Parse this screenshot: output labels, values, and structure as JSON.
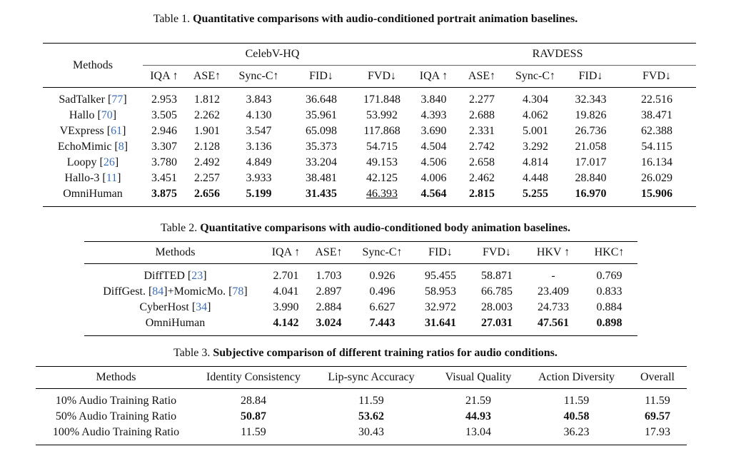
{
  "table1": {
    "caption_prefix": "Table 1.",
    "caption": "Quantitative comparisons with audio-conditioned portrait animation baselines.",
    "methods_header": "Methods",
    "groups": [
      "CelebV-HQ",
      "RAVDESS"
    ],
    "columns": [
      "IQA ↑",
      "ASE↑",
      "Sync-C↑",
      "FID↓",
      "FVD↓",
      "IQA ↑",
      "ASE↑",
      "Sync-C↑",
      "FID↓",
      "FVD↓"
    ],
    "rows": [
      {
        "method": [
          {
            "t": "SadTalker ["
          },
          {
            "t": "77",
            "ref": true
          },
          {
            "t": "]"
          }
        ],
        "values": [
          "2.953",
          "1.812",
          "3.843",
          "36.648",
          "171.848",
          "3.840",
          "2.277",
          "4.304",
          "32.343",
          "22.516"
        ]
      },
      {
        "method": [
          {
            "t": "Hallo ["
          },
          {
            "t": "70",
            "ref": true
          },
          {
            "t": "]"
          }
        ],
        "values": [
          "3.505",
          "2.262",
          "4.130",
          "35.961",
          "53.992",
          "4.393",
          "2.688",
          "4.062",
          "19.826",
          "38.471"
        ]
      },
      {
        "method": [
          {
            "t": "VExpress ["
          },
          {
            "t": "61",
            "ref": true
          },
          {
            "t": "]"
          }
        ],
        "values": [
          "2.946",
          "1.901",
          "3.547",
          "65.098",
          "117.868",
          "3.690",
          "2.331",
          "5.001",
          "26.736",
          "62.388"
        ]
      },
      {
        "method": [
          {
            "t": "EchoMimic ["
          },
          {
            "t": "8",
            "ref": true
          },
          {
            "t": "]"
          }
        ],
        "values": [
          "3.307",
          "2.128",
          "3.136",
          "35.373",
          "54.715",
          "4.504",
          "2.742",
          "3.292",
          "21.058",
          "54.115"
        ]
      },
      {
        "method": [
          {
            "t": "Loopy ["
          },
          {
            "t": "26",
            "ref": true
          },
          {
            "t": "]"
          }
        ],
        "values": [
          "3.780",
          "2.492",
          "4.849",
          "33.204",
          "49.153",
          "4.506",
          "2.658",
          "4.814",
          "17.017",
          "16.134"
        ]
      },
      {
        "method": [
          {
            "t": "Hallo-3 ["
          },
          {
            "t": "11",
            "ref": true
          },
          {
            "t": "]"
          }
        ],
        "values": [
          "3.451",
          "2.257",
          "3.933",
          "38.481",
          "42.125",
          "4.006",
          "2.462",
          "4.448",
          "28.840",
          "26.029"
        ]
      },
      {
        "method": [
          {
            "t": "OmniHuman"
          }
        ],
        "values": [
          "3.875",
          "2.656",
          "5.199",
          "31.435",
          "46.393",
          "4.564",
          "2.815",
          "5.255",
          "16.970",
          "15.906"
        ],
        "bold": [
          0,
          1,
          2,
          3,
          5,
          6,
          7,
          8,
          9
        ],
        "underline": [
          4
        ]
      }
    ]
  },
  "table2": {
    "caption_prefix": "Table 2.",
    "caption": "Quantitative comparisons with audio-conditioned body animation baselines.",
    "methods_header": "Methods",
    "columns": [
      "IQA ↑",
      "ASE↑",
      "Sync-C↑",
      "FID↓",
      "FVD↓",
      "HKV ↑",
      "HKC↑"
    ],
    "rows": [
      {
        "method": [
          {
            "t": "DiffTED ["
          },
          {
            "t": "23",
            "ref": true
          },
          {
            "t": "]"
          }
        ],
        "values": [
          "2.701",
          "1.703",
          "0.926",
          "95.455",
          "58.871",
          "-",
          "0.769"
        ]
      },
      {
        "method": [
          {
            "t": "DiffGest. ["
          },
          {
            "t": "84",
            "ref": true
          },
          {
            "t": "]+MomicMo. ["
          },
          {
            "t": "78",
            "ref": true
          },
          {
            "t": "]"
          }
        ],
        "values": [
          "4.041",
          "2.897",
          "0.496",
          "58.953",
          "66.785",
          "23.409",
          "0.833"
        ]
      },
      {
        "method": [
          {
            "t": "CyberHost ["
          },
          {
            "t": "34",
            "ref": true
          },
          {
            "t": "]"
          }
        ],
        "values": [
          "3.990",
          "2.884",
          "6.627",
          "32.972",
          "28.003",
          "24.733",
          "0.884"
        ]
      },
      {
        "method": [
          {
            "t": "OmniHuman"
          }
        ],
        "values": [
          "4.142",
          "3.024",
          "7.443",
          "31.641",
          "27.031",
          "47.561",
          "0.898"
        ],
        "bold": [
          0,
          1,
          2,
          3,
          4,
          5,
          6
        ]
      }
    ]
  },
  "table3": {
    "caption_prefix": "Table 3.",
    "caption": "Subjective comparison of different training ratios for audio conditions.",
    "methods_header": "Methods",
    "columns": [
      "Identity Consistency",
      "Lip-sync Accuracy",
      "Visual Quality",
      "Action Diversity",
      "Overall"
    ],
    "rows": [
      {
        "method": [
          {
            "t": "10% Audio Training Ratio"
          }
        ],
        "values": [
          "28.84",
          "11.59",
          "21.59",
          "11.59",
          "11.59"
        ]
      },
      {
        "method": [
          {
            "t": "50% Audio Training Ratio"
          }
        ],
        "values": [
          "50.87",
          "53.62",
          "44.93",
          "40.58",
          "69.57"
        ],
        "bold": [
          0,
          1,
          2,
          3,
          4
        ]
      },
      {
        "method": [
          {
            "t": "100% Audio Training Ratio"
          }
        ],
        "values": [
          "11.59",
          "30.43",
          "13.04",
          "36.23",
          "17.93"
        ]
      }
    ]
  }
}
